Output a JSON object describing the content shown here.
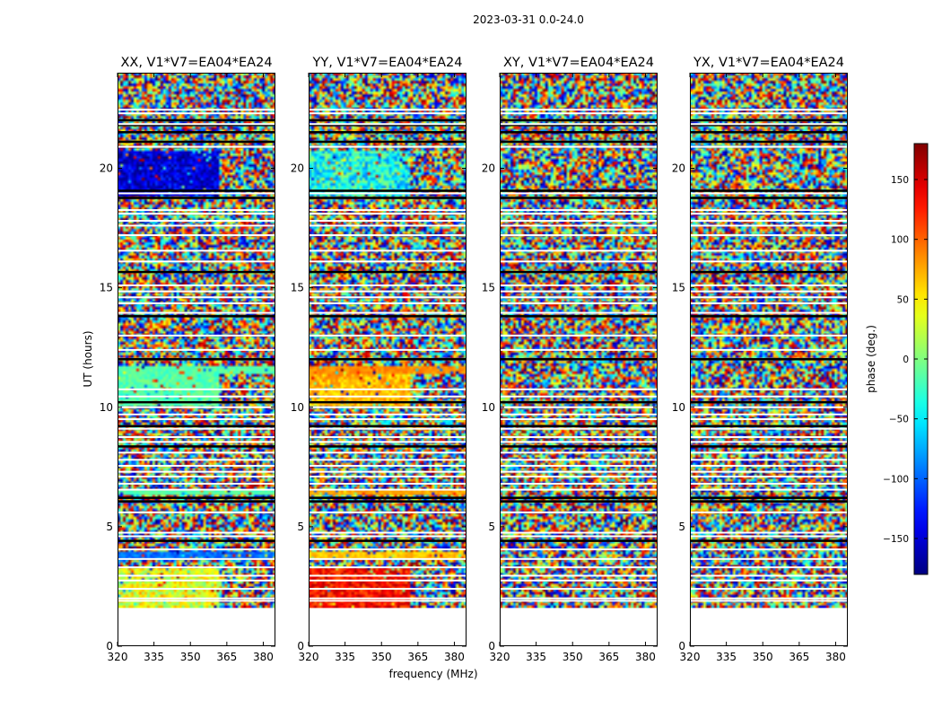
{
  "chart_data": {
    "type": "heatmap",
    "suptitle": "2023-03-31 0.0-24.0",
    "xlabel": "frequency (MHz)",
    "ylabel": "UT (hours)",
    "xlim": [
      320,
      385
    ],
    "ylim": [
      0,
      24
    ],
    "x_ticks": [
      320,
      335,
      350,
      365,
      380
    ],
    "x_tick_labels": [
      "320",
      "335",
      "350",
      "365",
      "380"
    ],
    "y_ticks": [
      0,
      5,
      10,
      15,
      20
    ],
    "y_tick_labels": [
      "0",
      "5",
      "10",
      "15",
      "20"
    ],
    "data_time_range_hours": [
      1.6,
      24.0
    ],
    "colormap": "jet",
    "colorbar": {
      "label": "phase (deg.)",
      "range": [
        -180,
        180
      ],
      "ticks": [
        150,
        100,
        50,
        0,
        -50,
        -100,
        -150
      ],
      "tick_labels": [
        "150",
        "100",
        "50",
        "0",
        "−50",
        "−100",
        "−150"
      ]
    },
    "white_flag_rows_hours": [
      0.75,
      1.1,
      1.9,
      2.0,
      2.4,
      2.75,
      2.95,
      3.3,
      3.65,
      4.05,
      4.6,
      4.75,
      5.6,
      6.55,
      6.8,
      7.1,
      7.3,
      7.55,
      7.8,
      8.1,
      8.55,
      8.75,
      9.1,
      9.5,
      9.7,
      10.0,
      10.45,
      10.75,
      12.4,
      13.0,
      13.95,
      14.35,
      14.6,
      14.85,
      15.1,
      16.1,
      16.55,
      17.2,
      17.6,
      17.8,
      18.1,
      18.25,
      18.95,
      20.9,
      21.85,
      22.3,
      22.45
    ],
    "black_gap_rows_hours": [
      4.4,
      6.05,
      6.2,
      8.35,
      9.2,
      10.2,
      12.0,
      13.8,
      15.65,
      18.75,
      19.05,
      21.1,
      21.5,
      21.8,
      22.0
    ],
    "series": [
      {
        "name": "XX, V1*V7=EA04*EA24",
        "panel_title": "XX, V1*V7=EA04*EA24",
        "coherent_bands": [
          {
            "hours": [
              1.6,
              3.3
            ],
            "freq_mhz": [
              320,
              362
            ],
            "phase_deg": 35,
            "spread_deg": 40
          },
          {
            "hours": [
              3.6,
              3.95
            ],
            "freq_mhz": [
              320,
              385
            ],
            "phase_deg": -95,
            "spread_deg": 20
          },
          {
            "hours": [
              6.3,
              6.55
            ],
            "freq_mhz": [
              320,
              385
            ],
            "phase_deg": -15,
            "spread_deg": 12
          },
          {
            "hours": [
              10.0,
              11.4
            ],
            "freq_mhz": [
              320,
              362
            ],
            "phase_deg": -15,
            "spread_deg": 18
          },
          {
            "hours": [
              11.4,
              11.7
            ],
            "freq_mhz": [
              320,
              385
            ],
            "phase_deg": -15,
            "spread_deg": 15
          },
          {
            "hours": [
              18.8,
              20.7
            ],
            "freq_mhz": [
              320,
              362
            ],
            "phase_deg": -150,
            "spread_deg": 35
          }
        ]
      },
      {
        "name": "YY, V1*V7=EA04*EA24",
        "panel_title": "YY, V1*V7=EA04*EA24",
        "coherent_bands": [
          {
            "hours": [
              1.6,
              3.3
            ],
            "freq_mhz": [
              320,
              362
            ],
            "phase_deg": 130,
            "spread_deg": 35
          },
          {
            "hours": [
              3.6,
              3.95
            ],
            "freq_mhz": [
              320,
              385
            ],
            "phase_deg": 65,
            "spread_deg": 15
          },
          {
            "hours": [
              6.3,
              6.55
            ],
            "freq_mhz": [
              320,
              385
            ],
            "phase_deg": 75,
            "spread_deg": 12
          },
          {
            "hours": [
              10.0,
              11.4
            ],
            "freq_mhz": [
              320,
              362
            ],
            "phase_deg": 70,
            "spread_deg": 25
          },
          {
            "hours": [
              11.4,
              11.7
            ],
            "freq_mhz": [
              320,
              385
            ],
            "phase_deg": 85,
            "spread_deg": 12
          },
          {
            "hours": [
              18.8,
              20.7
            ],
            "freq_mhz": [
              320,
              362
            ],
            "phase_deg": -40,
            "spread_deg": 50
          }
        ]
      },
      {
        "name": "XY, V1*V7=EA04*EA24",
        "panel_title": "XY, V1*V7=EA04*EA24",
        "coherent_bands": []
      },
      {
        "name": "YX, V1*V7=EA04*EA24",
        "panel_title": "YX, V1*V7=EA04*EA24",
        "coherent_bands": []
      }
    ]
  }
}
